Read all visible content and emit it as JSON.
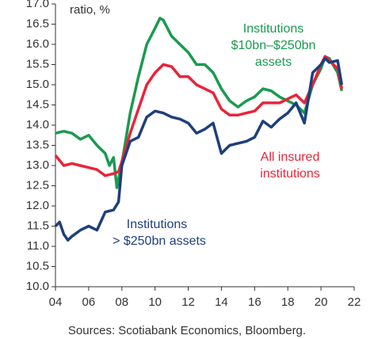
{
  "chart_data": {
    "type": "line",
    "title": "ratio, %",
    "source": "Sources: Scotiabank Economics, Bloomberg.",
    "xlim": [
      2004,
      2022
    ],
    "xticks": [
      {
        "value": 2004,
        "label": "04"
      },
      {
        "value": 2006,
        "label": "06"
      },
      {
        "value": 2008,
        "label": "08"
      },
      {
        "value": 2010,
        "label": "10"
      },
      {
        "value": 2012,
        "label": "12"
      },
      {
        "value": 2014,
        "label": "14"
      },
      {
        "value": 2016,
        "label": "16"
      },
      {
        "value": 2018,
        "label": "18"
      },
      {
        "value": 2020,
        "label": "20"
      },
      {
        "value": 2022,
        "label": "22"
      }
    ],
    "ylim": [
      10,
      17
    ],
    "yticks": [
      {
        "value": 10,
        "label": "10.0"
      },
      {
        "value": 10.5,
        "label": "10.5"
      },
      {
        "value": 11,
        "label": "11.0"
      },
      {
        "value": 11.5,
        "label": "11.5"
      },
      {
        "value": 12,
        "label": "12.0"
      },
      {
        "value": 12.5,
        "label": "12.5"
      },
      {
        "value": 13,
        "label": "13.0"
      },
      {
        "value": 13.5,
        "label": "13.5"
      },
      {
        "value": 14,
        "label": "14.0"
      },
      {
        "value": 14.5,
        "label": "14.5"
      },
      {
        "value": 15,
        "label": "15.0"
      },
      {
        "value": 15.5,
        "label": "15.5"
      },
      {
        "value": 16,
        "label": "16.0"
      },
      {
        "value": 16.5,
        "label": "16.5"
      },
      {
        "value": 17,
        "label": "17.0"
      }
    ],
    "series": [
      {
        "name": [
          "Institutions",
          "$10bn–$250bn",
          "assets"
        ],
        "color": "#1a9a50",
        "x": [
          2004,
          2004.5,
          2005,
          2005.5,
          2006,
          2006.5,
          2007,
          2007.25,
          2007.5,
          2007.7,
          2008.1,
          2008.5,
          2009,
          2009.5,
          2010,
          2010.3,
          2010.5,
          2011,
          2011.5,
          2012,
          2012.5,
          2013,
          2013.5,
          2014,
          2014.5,
          2015,
          2015.5,
          2016,
          2016.5,
          2017,
          2017.5,
          2018,
          2018.5,
          2019,
          2019.5,
          2020,
          2020.25,
          2020.5,
          2021,
          2021.25
        ],
        "values": [
          13.8,
          13.85,
          13.8,
          13.65,
          13.75,
          13.5,
          13.3,
          13.0,
          13.2,
          12.45,
          13.3,
          14.3,
          15.2,
          16.0,
          16.4,
          16.65,
          16.6,
          16.2,
          16.0,
          15.8,
          15.5,
          15.5,
          15.3,
          14.9,
          14.6,
          14.45,
          14.6,
          14.7,
          14.9,
          14.85,
          14.7,
          14.6,
          14.5,
          14.3,
          15.0,
          15.4,
          15.7,
          15.65,
          15.3,
          14.85
        ]
      },
      {
        "name": [
          "All insured",
          "institutions"
        ],
        "color": "#e8253a",
        "x": [
          2004,
          2004.5,
          2005,
          2005.5,
          2006,
          2006.5,
          2007,
          2007.5,
          2007.8,
          2008,
          2008.5,
          2009,
          2009.5,
          2010,
          2010.5,
          2011,
          2011.5,
          2012,
          2012.5,
          2013,
          2013.5,
          2014,
          2014.5,
          2015,
          2015.5,
          2016,
          2016.5,
          2017,
          2017.5,
          2018,
          2018.5,
          2019,
          2019.5,
          2020,
          2020.25,
          2020.5,
          2021,
          2021.25
        ],
        "values": [
          13.25,
          13.0,
          13.05,
          13.0,
          12.95,
          12.9,
          12.75,
          12.8,
          12.85,
          13.1,
          13.8,
          14.4,
          15.0,
          15.3,
          15.5,
          15.45,
          15.2,
          15.2,
          15.0,
          14.9,
          14.8,
          14.4,
          14.25,
          14.25,
          14.3,
          14.35,
          14.55,
          14.55,
          14.55,
          14.65,
          14.75,
          14.55,
          15.0,
          15.5,
          15.7,
          15.6,
          15.4,
          14.9
        ]
      },
      {
        "name": [
          "Institutions",
          "> $250bn assets"
        ],
        "color": "#1f3f7c",
        "x": [
          2004,
          2004.25,
          2004.5,
          2004.75,
          2005,
          2005.5,
          2006,
          2006.5,
          2007,
          2007.5,
          2007.8,
          2008,
          2008.5,
          2009,
          2009.5,
          2010,
          2010.5,
          2011,
          2011.5,
          2012,
          2012.5,
          2013,
          2013.5,
          2014,
          2014.5,
          2015,
          2015.5,
          2016,
          2016.5,
          2017,
          2017.5,
          2018,
          2018.5,
          2019,
          2019.5,
          2020,
          2020.25,
          2020.5,
          2021,
          2021.25
        ],
        "values": [
          11.5,
          11.6,
          11.3,
          11.15,
          11.25,
          11.4,
          11.5,
          11.4,
          11.85,
          11.9,
          12.1,
          13.0,
          13.6,
          13.7,
          14.2,
          14.35,
          14.3,
          14.2,
          14.15,
          14.05,
          13.8,
          13.9,
          14.05,
          13.3,
          13.5,
          13.55,
          13.6,
          13.7,
          14.1,
          13.95,
          14.15,
          14.3,
          14.55,
          14.05,
          15.3,
          15.5,
          15.65,
          15.55,
          15.6,
          15.0
        ]
      }
    ]
  }
}
